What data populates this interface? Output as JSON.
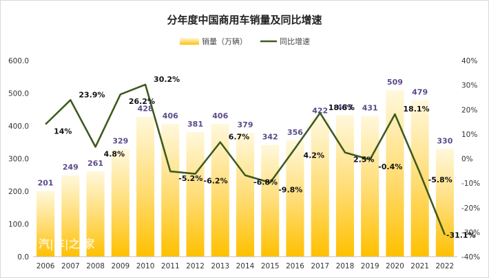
{
  "chart_data": {
    "type": "bar",
    "title": "分年度中国商用车销量及同比增速",
    "categories": [
      "2006",
      "2007",
      "2008",
      "2009",
      "2010",
      "2011",
      "2012",
      "2013",
      "2014",
      "2015",
      "2016",
      "2017",
      "2018",
      "2019",
      "2020",
      "2021",
      "2022"
    ],
    "series": [
      {
        "name": "销量（万辆）",
        "type": "bar",
        "axis": "left",
        "values": [
          201,
          249,
          261,
          329,
          428,
          406,
          381,
          406,
          379,
          342,
          356,
          422,
          433,
          431,
          509,
          479,
          330
        ],
        "labels": [
          "201",
          "249",
          "261",
          "329",
          "428",
          "406",
          "381",
          "406",
          "379",
          "342",
          "356",
          "422",
          "433",
          "431",
          "509",
          "479",
          "330"
        ],
        "color": "#FFC000"
      },
      {
        "name": "同比增速",
        "type": "line",
        "axis": "right",
        "values": [
          14,
          23.9,
          4.8,
          26.2,
          30.2,
          -5.2,
          -6.2,
          6.7,
          -6.8,
          -9.8,
          4.2,
          18.6,
          2.5,
          -0.4,
          18.1,
          -5.8,
          -31.1
        ],
        "labels": [
          "14%",
          "23.9%",
          "4.8%",
          "26.2%",
          "30.2%",
          "-5.2%",
          "-6.2%",
          "6.7%",
          "-6.8%",
          "-9.8%",
          "4.2%",
          "18.6%",
          "2.5%",
          "-0.4%",
          "18.1%",
          "-5.8%",
          "-31.1%"
        ],
        "color": "#3E5A1E"
      }
    ],
    "y_left": {
      "min": 0,
      "max": 600,
      "ticks": [
        "0.0",
        "100.0",
        "200.0",
        "300.0",
        "400.0",
        "500.0",
        "600.0"
      ]
    },
    "y_right": {
      "min": -40,
      "max": 40,
      "ticks": [
        "-40%",
        "-30%",
        "-20%",
        "-10%",
        "0%",
        "10%",
        "20%",
        "30%",
        "40%"
      ]
    },
    "grid": false,
    "legend": "top-center",
    "watermark": "汽|车|之|家"
  }
}
